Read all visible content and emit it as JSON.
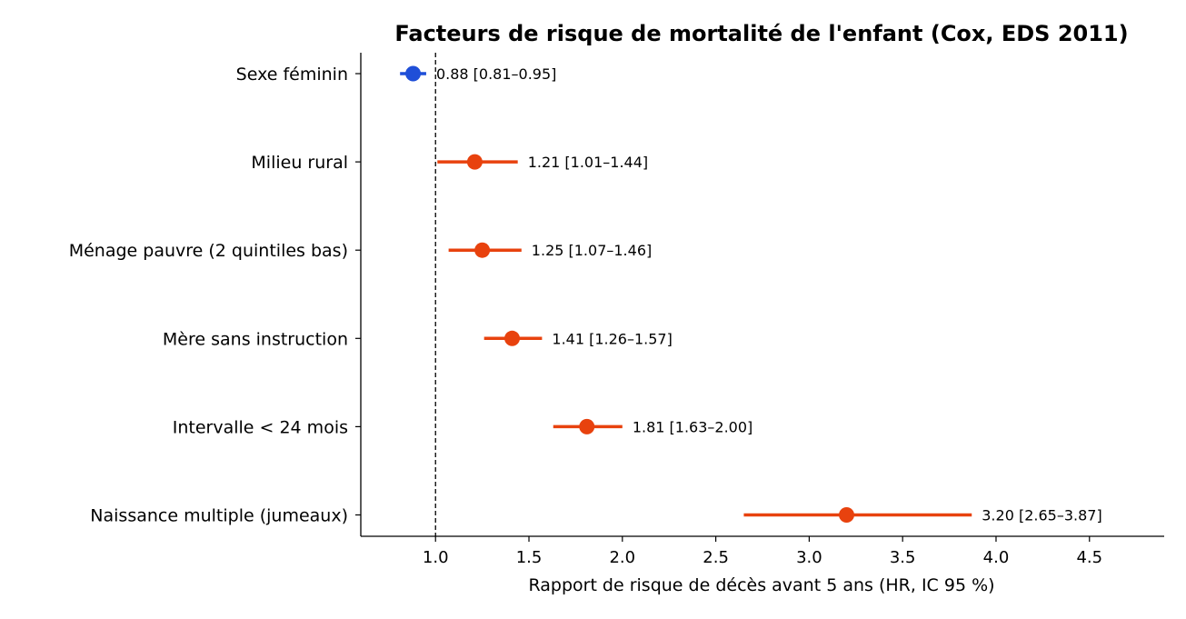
{
  "chart_data": {
    "type": "forest",
    "title": "Facteurs de risque de mortalité de l'enfant (Cox, EDS 2011)",
    "xlabel": "Rapport de risque de décès avant 5 ans (HR, IC 95 %)",
    "ylabel": "",
    "xlim": [
      0.6,
      4.9
    ],
    "xticks": [
      1.0,
      1.5,
      2.0,
      2.5,
      3.0,
      3.5,
      4.0,
      4.5
    ],
    "xtick_labels": [
      "1.0",
      "1.5",
      "2.0",
      "2.5",
      "3.0",
      "3.5",
      "4.0",
      "4.5"
    ],
    "reference_line": 1.0,
    "grid": false,
    "colors": {
      "protective": "#1f4fd8",
      "risk": "#e8420e"
    },
    "rows": [
      {
        "label": "Sexe féminin",
        "hr": 0.88,
        "lo": 0.81,
        "hi": 0.95,
        "annotation": "0.88 [0.81–0.95]",
        "kind": "protective"
      },
      {
        "label": "Milieu rural",
        "hr": 1.21,
        "lo": 1.01,
        "hi": 1.44,
        "annotation": "1.21 [1.01–1.44]",
        "kind": "risk"
      },
      {
        "label": "Ménage pauvre (2 quintiles bas)",
        "hr": 1.25,
        "lo": 1.07,
        "hi": 1.46,
        "annotation": "1.25 [1.07–1.46]",
        "kind": "risk"
      },
      {
        "label": "Mère sans instruction",
        "hr": 1.41,
        "lo": 1.26,
        "hi": 1.57,
        "annotation": "1.41 [1.26–1.57]",
        "kind": "risk"
      },
      {
        "label": "Intervalle < 24 mois",
        "hr": 1.81,
        "lo": 1.63,
        "hi": 2.0,
        "annotation": "1.81 [1.63–2.00]",
        "kind": "risk"
      },
      {
        "label": "Naissance multiple (jumeaux)",
        "hr": 3.2,
        "lo": 2.65,
        "hi": 3.87,
        "annotation": "3.20 [2.65–3.87]",
        "kind": "risk"
      }
    ]
  }
}
